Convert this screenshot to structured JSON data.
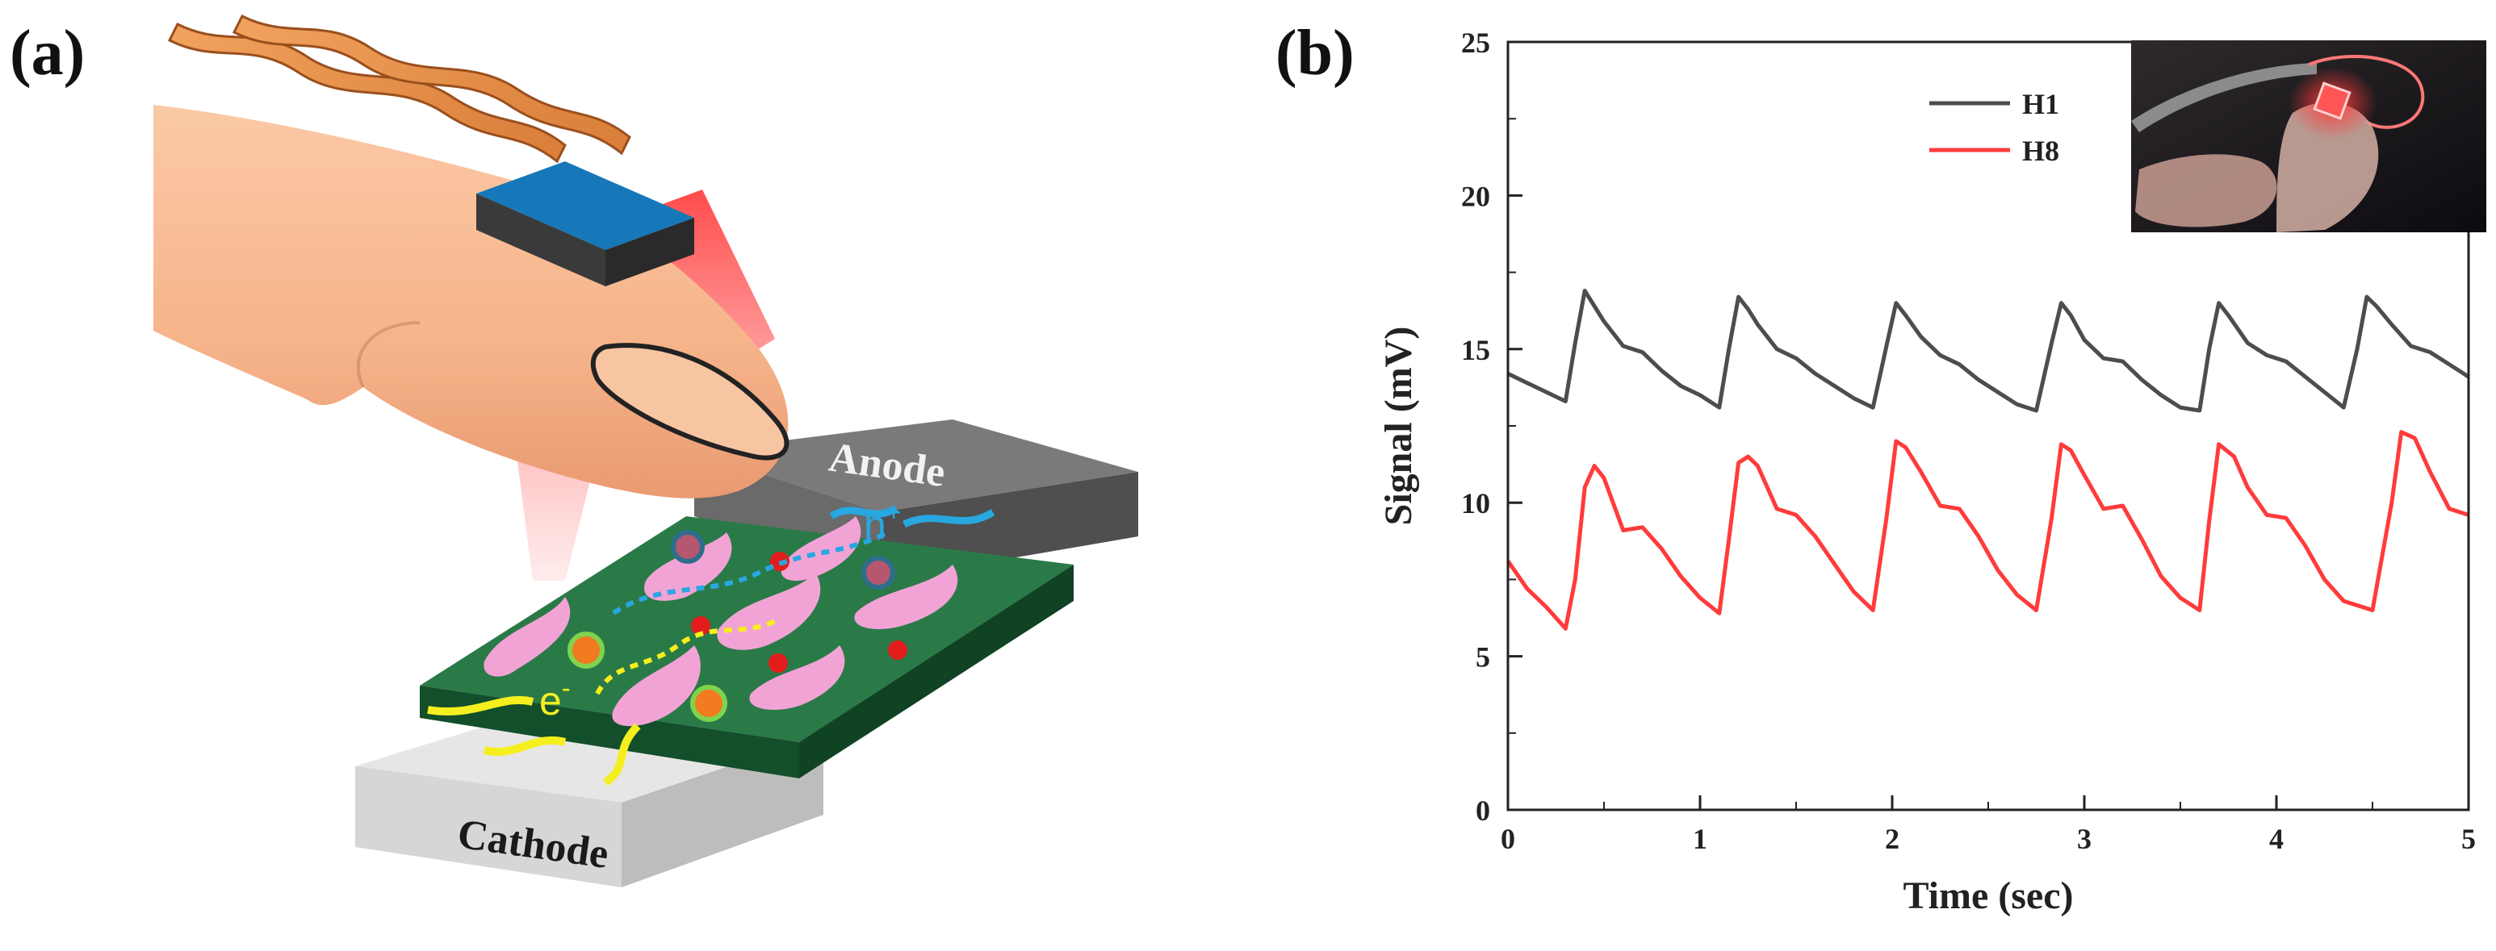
{
  "panel_a": {
    "label": "(a)",
    "anode_label": "Anode",
    "cathode_label": "Cathode",
    "hole_label": "h",
    "hole_sup": "+",
    "electron_label": "e",
    "electron_sup": "-",
    "colors": {
      "skin": "#f6b48a",
      "sensor_top": "#1678b8",
      "light": "#ff2a2a",
      "active_layer": "#1f6d3f",
      "grains": "#f2a3d6",
      "electron_path": "#f5ef1f",
      "hole_path": "#29a7e1",
      "anode": "#6b6b6b",
      "cathode": "#d9d9d9"
    }
  },
  "panel_b": {
    "label": "(b)"
  },
  "chart_data": {
    "type": "line",
    "title": "",
    "xlabel": "Time (sec)",
    "ylabel": "Signal (mV)",
    "xlim": [
      0,
      5
    ],
    "ylim": [
      0,
      25
    ],
    "xticks": [
      0,
      1,
      2,
      3,
      4,
      5
    ],
    "yticks": [
      0,
      5,
      10,
      15,
      20,
      25
    ],
    "legend_position": "top-center",
    "inset": "photo of finger with red-light sensor (upper-right)",
    "series": [
      {
        "name": "H1",
        "color": "#4d4d4d",
        "x": [
          0,
          0.1,
          0.2,
          0.3,
          0.35,
          0.4,
          0.45,
          0.5,
          0.6,
          0.7,
          0.8,
          0.9,
          1.0,
          1.1,
          1.15,
          1.2,
          1.25,
          1.3,
          1.4,
          1.5,
          1.6,
          1.7,
          1.8,
          1.9,
          1.97,
          2.02,
          2.07,
          2.15,
          2.25,
          2.35,
          2.45,
          2.55,
          2.65,
          2.75,
          2.83,
          2.88,
          2.93,
          3.0,
          3.1,
          3.2,
          3.3,
          3.4,
          3.5,
          3.6,
          3.65,
          3.7,
          3.75,
          3.85,
          3.95,
          4.05,
          4.15,
          4.25,
          4.35,
          4.42,
          4.47,
          4.52,
          4.6,
          4.7,
          4.8,
          4.9,
          5.0
        ],
        "values": [
          14.2,
          13.9,
          13.6,
          13.3,
          15.2,
          16.9,
          16.4,
          15.9,
          15.1,
          14.9,
          14.3,
          13.8,
          13.5,
          13.1,
          15.0,
          16.7,
          16.3,
          15.8,
          15.0,
          14.7,
          14.2,
          13.8,
          13.4,
          13.1,
          15.1,
          16.5,
          16.1,
          15.4,
          14.8,
          14.5,
          14.0,
          13.6,
          13.2,
          13.0,
          15.2,
          16.5,
          16.1,
          15.3,
          14.7,
          14.6,
          14.0,
          13.5,
          13.1,
          13.0,
          15.0,
          16.5,
          16.1,
          15.2,
          14.8,
          14.6,
          14.1,
          13.6,
          13.1,
          15.0,
          16.7,
          16.4,
          15.8,
          15.1,
          14.9,
          14.5,
          14.1
        ]
      },
      {
        "name": "H8",
        "color": "#ff3b3b",
        "x": [
          0,
          0.1,
          0.2,
          0.3,
          0.35,
          0.4,
          0.45,
          0.5,
          0.6,
          0.7,
          0.8,
          0.9,
          1.0,
          1.1,
          1.15,
          1.2,
          1.25,
          1.3,
          1.4,
          1.5,
          1.6,
          1.7,
          1.8,
          1.9,
          1.97,
          2.02,
          2.07,
          2.15,
          2.25,
          2.35,
          2.45,
          2.55,
          2.65,
          2.75,
          2.83,
          2.88,
          2.93,
          3.0,
          3.1,
          3.2,
          3.3,
          3.4,
          3.5,
          3.6,
          3.65,
          3.7,
          3.78,
          3.85,
          3.95,
          4.05,
          4.15,
          4.25,
          4.35,
          4.5,
          4.6,
          4.65,
          4.72,
          4.8,
          4.9,
          5.0
        ],
        "values": [
          8.1,
          7.2,
          6.6,
          5.9,
          7.5,
          10.5,
          11.2,
          10.8,
          9.1,
          9.2,
          8.5,
          7.6,
          6.9,
          6.4,
          8.8,
          11.3,
          11.5,
          11.2,
          9.8,
          9.6,
          8.9,
          8.0,
          7.1,
          6.5,
          9.5,
          12.0,
          11.8,
          11.0,
          9.9,
          9.8,
          8.9,
          7.8,
          7.0,
          6.5,
          9.5,
          11.9,
          11.7,
          10.9,
          9.8,
          9.9,
          8.8,
          7.6,
          6.9,
          6.5,
          9.4,
          11.9,
          11.5,
          10.5,
          9.6,
          9.5,
          8.6,
          7.5,
          6.8,
          6.5,
          10.0,
          12.3,
          12.1,
          11.0,
          9.8,
          9.6
        ]
      }
    ]
  }
}
